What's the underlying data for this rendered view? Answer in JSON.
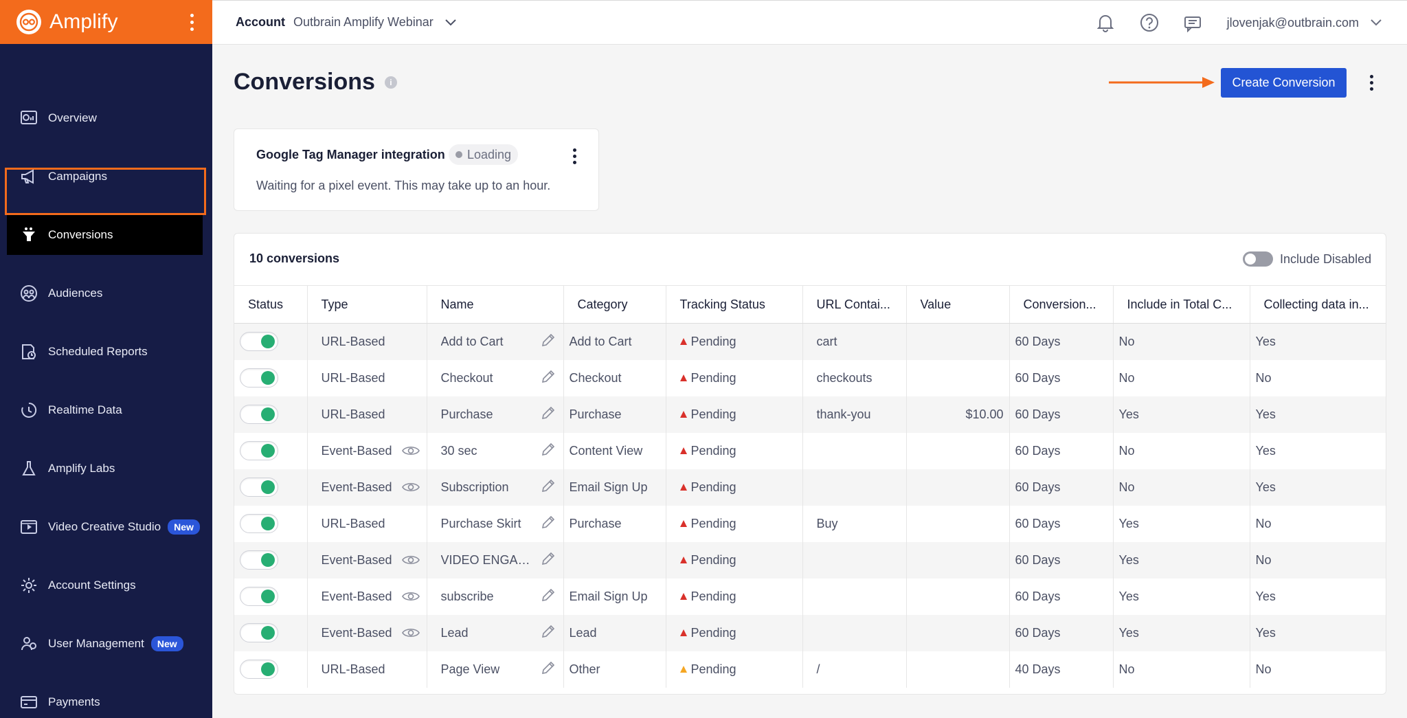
{
  "app": {
    "name": "Amplify"
  },
  "sidebar": {
    "items": [
      {
        "label": "Overview",
        "icon": "overview-icon"
      },
      {
        "label": "Campaigns",
        "icon": "megaphone-icon"
      },
      {
        "label": "Conversions",
        "icon": "funnel-icon",
        "active": true
      },
      {
        "label": "Audiences",
        "icon": "audiences-icon"
      },
      {
        "label": "Scheduled Reports",
        "icon": "report-icon"
      },
      {
        "label": "Realtime Data",
        "icon": "clock-icon"
      },
      {
        "label": "Amplify Labs",
        "icon": "flask-icon"
      },
      {
        "label": "Video Creative Studio",
        "icon": "video-icon",
        "badge": "New"
      },
      {
        "label": "Account Settings",
        "icon": "gear-icon"
      },
      {
        "label": "User Management",
        "icon": "users-icon",
        "badge": "New"
      },
      {
        "label": "Payments",
        "icon": "card-icon"
      }
    ]
  },
  "topbar": {
    "account_label": "Account",
    "account_name": "Outbrain Amplify Webinar",
    "user_email": "jlovenjak@outbrain.com"
  },
  "page": {
    "title": "Conversions",
    "info": "i",
    "create_button": "Create Conversion"
  },
  "gtm": {
    "title": "Google Tag Manager integration",
    "status": "Loading",
    "description": "Waiting for a pixel event. This may take up to an hour."
  },
  "table": {
    "count_label": "10 conversions",
    "include_disabled_label": "Include Disabled",
    "columns": [
      "Status",
      "Type",
      "Name",
      "Category",
      "Tracking Status",
      "URL Contai...",
      "Value",
      "Conversion...",
      "Include in Total C...",
      "Collecting data in..."
    ],
    "rows": [
      {
        "type": "URL-Based",
        "eye": false,
        "name": "Add to Cart",
        "category": "Add to Cart",
        "tracking": "Pending",
        "severity": "red",
        "url": "cart",
        "value": "",
        "window": "60 Days",
        "include": "No",
        "collecting": "Yes"
      },
      {
        "type": "URL-Based",
        "eye": false,
        "name": "Checkout",
        "category": "Checkout",
        "tracking": "Pending",
        "severity": "red",
        "url": "checkouts",
        "value": "",
        "window": "60 Days",
        "include": "No",
        "collecting": "No"
      },
      {
        "type": "URL-Based",
        "eye": false,
        "name": "Purchase",
        "category": "Purchase",
        "tracking": "Pending",
        "severity": "red",
        "url": "thank-you",
        "value": "$10.00",
        "window": "60 Days",
        "include": "Yes",
        "collecting": "Yes"
      },
      {
        "type": "Event-Based",
        "eye": true,
        "name": "30 sec",
        "category": "Content View",
        "tracking": "Pending",
        "severity": "red",
        "url": "",
        "value": "",
        "window": "60 Days",
        "include": "No",
        "collecting": "Yes"
      },
      {
        "type": "Event-Based",
        "eye": true,
        "name": "Subscription",
        "category": "Email Sign Up",
        "tracking": "Pending",
        "severity": "red",
        "url": "",
        "value": "",
        "window": "60 Days",
        "include": "No",
        "collecting": "Yes"
      },
      {
        "type": "URL-Based",
        "eye": false,
        "name": "Purchase Skirt",
        "category": "Purchase",
        "tracking": "Pending",
        "severity": "red",
        "url": "Buy",
        "value": "",
        "window": "60 Days",
        "include": "Yes",
        "collecting": "No"
      },
      {
        "type": "Event-Based",
        "eye": true,
        "name": "VIDEO ENGAG...",
        "category": "",
        "tracking": "Pending",
        "severity": "red",
        "url": "",
        "value": "",
        "window": "60 Days",
        "include": "Yes",
        "collecting": "No"
      },
      {
        "type": "Event-Based",
        "eye": true,
        "name": "subscribe",
        "category": "Email Sign Up",
        "tracking": "Pending",
        "severity": "red",
        "url": "",
        "value": "",
        "window": "60 Days",
        "include": "Yes",
        "collecting": "Yes"
      },
      {
        "type": "Event-Based",
        "eye": true,
        "name": "Lead",
        "category": "Lead",
        "tracking": "Pending",
        "severity": "red",
        "url": "",
        "value": "",
        "window": "60 Days",
        "include": "Yes",
        "collecting": "Yes"
      },
      {
        "type": "URL-Based",
        "eye": false,
        "name": "Page View",
        "category": "Other",
        "tracking": "Pending",
        "severity": "orange",
        "url": "/",
        "value": "",
        "window": "40 Days",
        "include": "No",
        "collecting": "No"
      }
    ]
  },
  "colors": {
    "brand": "#f36b1c",
    "sidebar": "#161c46",
    "primary_button": "#2354d4",
    "toggle_on": "#27ae73",
    "pending_red": "#d9312b",
    "pending_orange": "#f5a623"
  }
}
